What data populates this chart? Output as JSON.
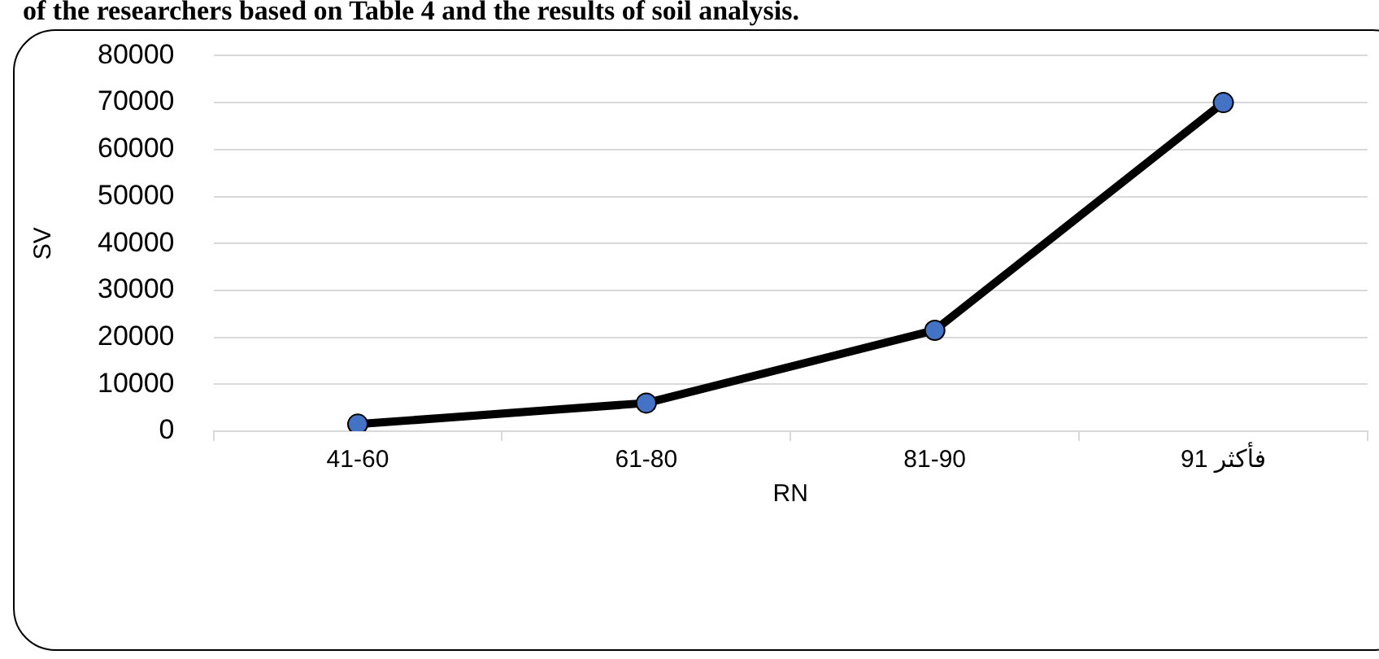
{
  "chart_data": {
    "type": "line",
    "annotations": [
      "of the researchers based on Table 4 and the results of soil analysis."
    ],
    "xlabel": "RN",
    "ylabel": "SV",
    "categories": [
      "41-60",
      "61-80",
      "81-90",
      "91 فأكثر"
    ],
    "series": [
      {
        "color": "#000000",
        "colors": [
          "#4472c4",
          "#4472c4",
          "#4472c4",
          "#4472c4"
        ],
        "values": [
          1500,
          6000,
          21500,
          70000
        ]
      }
    ],
    "ylim": [
      0,
      80000
    ],
    "yticks": [
      0,
      10000,
      20000,
      30000,
      40000,
      50000,
      60000,
      70000,
      80000
    ],
    "grid": "y",
    "marker": "circle",
    "line_style": "solid"
  }
}
